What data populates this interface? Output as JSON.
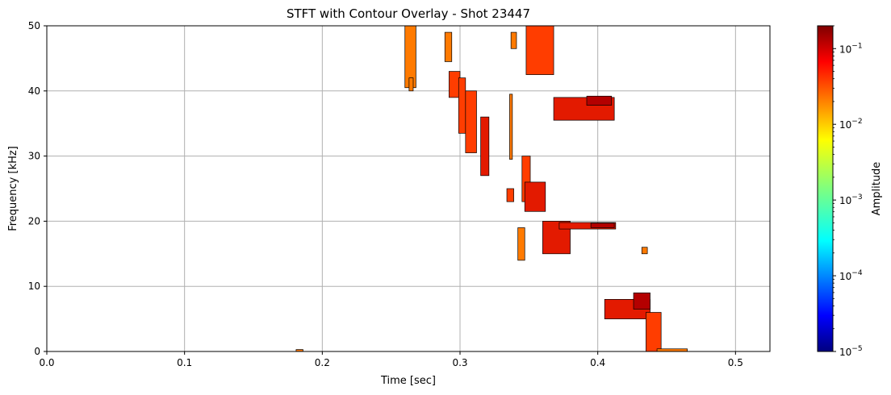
{
  "chart_data": {
    "type": "heatmap",
    "title": "STFT with Contour Overlay - Shot 23447",
    "xlabel": "Time [sec]",
    "ylabel": "Frequency [kHz]",
    "xlim": [
      0.0,
      0.525
    ],
    "ylim": [
      0,
      50
    ],
    "xticks": [
      {
        "value": 0.0,
        "label": "0.0"
      },
      {
        "value": 0.1,
        "label": "0.1"
      },
      {
        "value": 0.2,
        "label": "0.2"
      },
      {
        "value": 0.3,
        "label": "0.3"
      },
      {
        "value": 0.4,
        "label": "0.4"
      },
      {
        "value": 0.5,
        "label": "0.5"
      }
    ],
    "yticks": [
      {
        "value": 0,
        "label": "0"
      },
      {
        "value": 10,
        "label": "10"
      },
      {
        "value": 20,
        "label": "20"
      },
      {
        "value": 30,
        "label": "30"
      },
      {
        "value": 40,
        "label": "40"
      },
      {
        "value": 50,
        "label": "50"
      }
    ],
    "grid": true,
    "colorbar": {
      "label": "Amplitude",
      "scale": "log",
      "range": [
        1e-05,
        0.2
      ],
      "colormap": "jet",
      "ticks": [
        {
          "value": 1e-05,
          "base": "10",
          "exp": "−5"
        },
        {
          "value": 0.0001,
          "base": "10",
          "exp": "−4"
        },
        {
          "value": 0.001,
          "base": "10",
          "exp": "−3"
        },
        {
          "value": 0.01,
          "base": "10",
          "exp": "−2"
        },
        {
          "value": 0.1,
          "base": "10",
          "exp": "−1"
        }
      ]
    },
    "colors": {
      "low": "#ff7a00",
      "mid": "#ff3d00",
      "high": "#e31a00",
      "peak": "#b40000",
      "contour": "#000000",
      "grid": "#b0b0b0"
    },
    "regions": [
      {
        "name": "blob-26s-top",
        "t0": 0.26,
        "t1": 0.268,
        "f0": 40.5,
        "f1": 50,
        "level": "low"
      },
      {
        "name": "blob-26s-tail",
        "t0": 0.263,
        "t1": 0.266,
        "f0": 40.0,
        "f1": 42.0,
        "level": "low"
      },
      {
        "name": "blob-28",
        "t0": 0.289,
        "t1": 0.294,
        "f0": 44.5,
        "f1": 49.0,
        "level": "low"
      },
      {
        "name": "blob-29",
        "t0": 0.292,
        "t1": 0.3,
        "f0": 39.0,
        "f1": 43.0,
        "level": "mid"
      },
      {
        "name": "blob-29b",
        "t0": 0.299,
        "t1": 0.304,
        "f0": 33.5,
        "f1": 42.0,
        "level": "mid"
      },
      {
        "name": "blob-30",
        "t0": 0.304,
        "t1": 0.312,
        "f0": 30.5,
        "f1": 40.0,
        "level": "mid"
      },
      {
        "name": "blob-31",
        "t0": 0.315,
        "t1": 0.321,
        "f0": 27.0,
        "f1": 36.0,
        "level": "high"
      },
      {
        "name": "blob-33-top",
        "t0": 0.337,
        "t1": 0.341,
        "f0": 46.5,
        "f1": 49.0,
        "level": "low"
      },
      {
        "name": "blob-33-line",
        "t0": 0.336,
        "t1": 0.338,
        "f0": 29.5,
        "f1": 39.5,
        "level": "low"
      },
      {
        "name": "blob-34-top",
        "t0": 0.348,
        "t1": 0.368,
        "f0": 42.5,
        "f1": 50,
        "level": "mid"
      },
      {
        "name": "blob-38",
        "t0": 0.368,
        "t1": 0.412,
        "f0": 35.5,
        "f1": 39.0,
        "level": "high"
      },
      {
        "name": "blob-38-peak",
        "t0": 0.392,
        "t1": 0.41,
        "f0": 37.8,
        "f1": 39.2,
        "level": "peak"
      },
      {
        "name": "blob-34-mid",
        "t0": 0.345,
        "t1": 0.351,
        "f0": 23.0,
        "f1": 30.0,
        "level": "mid"
      },
      {
        "name": "blob-35",
        "t0": 0.347,
        "t1": 0.362,
        "f0": 21.5,
        "f1": 26.0,
        "level": "high"
      },
      {
        "name": "blob-33-mid",
        "t0": 0.334,
        "t1": 0.339,
        "f0": 23.0,
        "f1": 25.0,
        "level": "mid"
      },
      {
        "name": "blob-34-low",
        "t0": 0.342,
        "t1": 0.347,
        "f0": 14.0,
        "f1": 19.0,
        "level": "low"
      },
      {
        "name": "blob-37",
        "t0": 0.36,
        "t1": 0.38,
        "f0": 15.0,
        "f1": 20.0,
        "level": "high"
      },
      {
        "name": "blob-39",
        "t0": 0.372,
        "t1": 0.413,
        "f0": 18.8,
        "f1": 19.8,
        "level": "high"
      },
      {
        "name": "blob-39-peak",
        "t0": 0.395,
        "t1": 0.412,
        "f0": 19.0,
        "f1": 19.7,
        "level": "peak"
      },
      {
        "name": "blob-43-dot",
        "t0": 0.432,
        "t1": 0.436,
        "f0": 15.0,
        "f1": 16.0,
        "level": "low"
      },
      {
        "name": "blob-41",
        "t0": 0.405,
        "t1": 0.438,
        "f0": 5.0,
        "f1": 8.0,
        "level": "high"
      },
      {
        "name": "blob-43-peak",
        "t0": 0.426,
        "t1": 0.438,
        "f0": 6.5,
        "f1": 9.0,
        "level": "peak"
      },
      {
        "name": "blob-44",
        "t0": 0.435,
        "t1": 0.446,
        "f0": 0.0,
        "f1": 6.0,
        "level": "mid"
      },
      {
        "name": "blob-44-base",
        "t0": 0.443,
        "t1": 0.465,
        "f0": 0.0,
        "f1": 0.4,
        "level": "low"
      },
      {
        "name": "blob-18-base",
        "t0": 0.181,
        "t1": 0.186,
        "f0": 0.0,
        "f1": 0.3,
        "level": "low"
      }
    ]
  }
}
